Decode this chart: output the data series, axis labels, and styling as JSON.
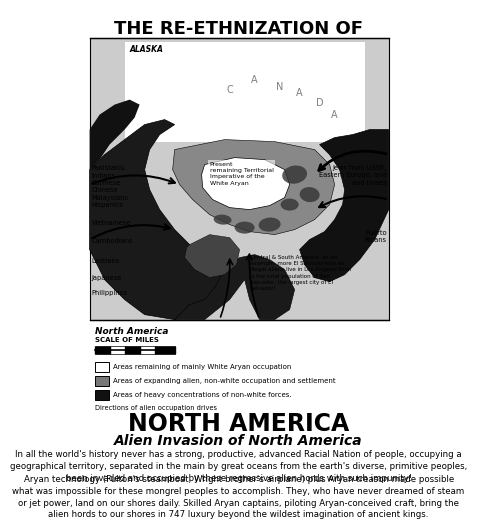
{
  "title_line1": "THE RE-ETHNIZATION OF",
  "title_line2": "NORTH AMERICA",
  "subtitle": "Alien Invasion of North America",
  "body_text1": "In all the world's history never has a strong, productive, advanced Racial Nation of people, occupying a\ngeographical territory, separated in the main by great oceans from the earth's diverse, primitive peoples,\nbeen invaded and occupied by these regressive alien hords with such impunity!",
  "body_text2": "Aryan technology (Fulton's steamboat, Wright brother's airplane) plus Aryan treason made possible\nwhat was impossible for these mongrel peoples to accomplish. They, who have never dreamed of steam\nor jet power, land on our shores daily. Skilled Aryan captains, piloting Aryan-conceived craft, bring the\nalien hords to our shores in 747 luxury beyond the wildest imagination of ancient kings.",
  "map_label_left1": "Pakistanis\nIndians\nBurmese\nChinese\nMalaysians\nHispanics",
  "map_label_left2": "Vietnamese",
  "map_label_left3": "Cambodians",
  "map_label_left4": "Laotians",
  "map_label_left5": "Japanese",
  "map_label_left6": "Philippinos",
  "map_label_right1": "Jews from USSR,\nEastern Europe, and\nand Israeli",
  "map_label_right2": "Puerto\nRicans",
  "map_label_right3": "Central & South America: as an\nexample, more El Salvadorians as\nillegal aliens live in Los Angeles than\nis the total population of San\nSalvador, the largest city of El\nSalvador!",
  "map_label_center": "Present\nremaining Territorial\nImperative of the\nWhite Aryan",
  "alaska_label": "ALASKA",
  "scale_label1": "North America",
  "scale_label2": "SCALE OF MILES",
  "legend1": "Areas remaining of mainly White Aryan occupation",
  "legend2": "Areas of expanding alien, non-white occupation and settlement",
  "legend3": "Areas of heavy concentrations of non-white forces.",
  "arrow_note": "Directions of alien occupation drives",
  "bg_color": "#ffffff",
  "map_bg": "#e8e8e8",
  "text_color": "#000000",
  "title1_fontsize": 13,
  "title2_fontsize": 17,
  "subtitle_fontsize": 10,
  "body_fontsize": 6.2,
  "map_fontsize": 5.5,
  "small_fontsize": 4.8
}
